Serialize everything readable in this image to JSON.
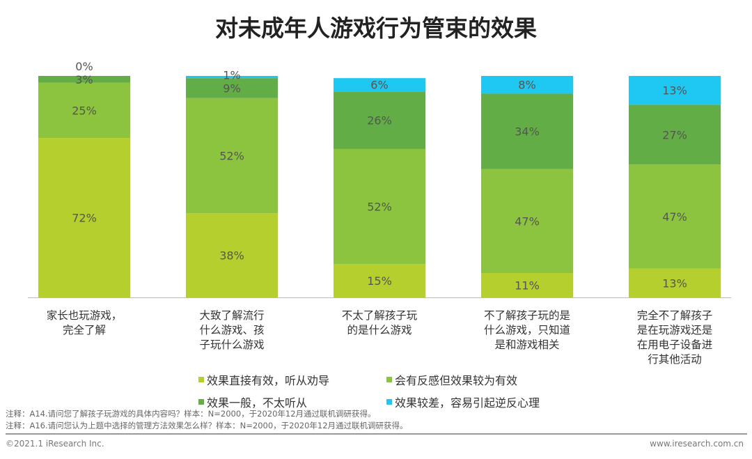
{
  "title": "对未成年人游戏行为管束的效果",
  "chart_data": {
    "type": "bar",
    "stacked": true,
    "title": "对未成年人游戏行为管束的效果",
    "categories": [
      "家长也玩游戏，\n完全了解",
      "大致了解流行\n什么游戏、孩\n子玩什么游戏",
      "不太了解孩子玩\n的是什么游戏",
      "不了解孩子玩的是\n什么游戏，只知道\n是和游戏相关",
      "完全不了解孩子\n是在玩游戏还是\n在用电子设备进\n行其他活动"
    ],
    "series": [
      {
        "name": "效果直接有效，听从劝导",
        "color": "#b5cf2f",
        "values": [
          72,
          38,
          15,
          11,
          13
        ]
      },
      {
        "name": "会有反感但效果较为有效",
        "color": "#8cc43f",
        "values": [
          25,
          52,
          52,
          47,
          47
        ]
      },
      {
        "name": "效果一般，不太听从",
        "color": "#62ad45",
        "values": [
          3,
          9,
          26,
          34,
          27
        ]
      },
      {
        "name": "效果较差，容易引起逆反心理",
        "color": "#1ec8f0",
        "values": [
          0,
          1,
          6,
          8,
          13
        ]
      }
    ],
    "value_suffix": "%",
    "ylim": [
      0,
      100
    ],
    "legend": "bottom"
  },
  "notes": [
    "注释：A14.请问您了解孩子玩游戏的具体内容吗？样本：N=2000，于2020年12月通过联机调研获得。",
    "注释：A16.请问您认为上题中选择的管理方法效果怎么样？样本：N=2000，于2020年12月通过联机调研获得。"
  ],
  "footer": {
    "copyright": "©2021.1 iResearch Inc.",
    "website": "www.iresearch.com.cn"
  }
}
